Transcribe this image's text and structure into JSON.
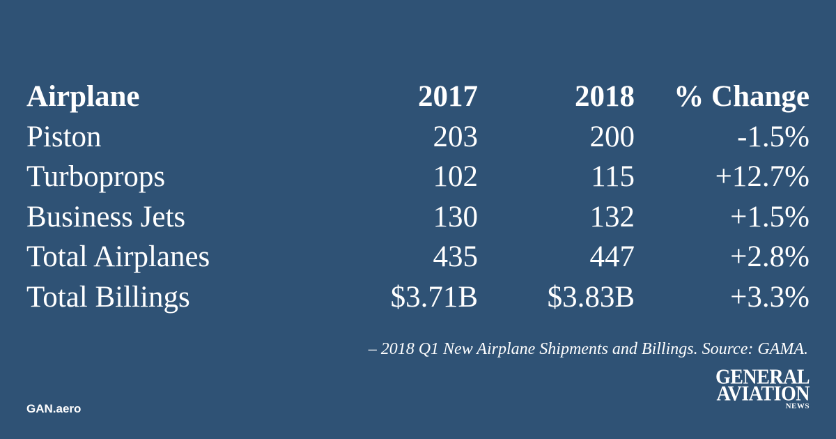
{
  "table": {
    "headers": {
      "airplane": "Airplane",
      "y2017": "2017",
      "y2018": "2018",
      "change": "% Change"
    },
    "rows": [
      {
        "label": "Piston",
        "v2017": "203",
        "v2018": "200",
        "change": "-1.5%"
      },
      {
        "label": "Turboprops",
        "v2017": "102",
        "v2018": "115",
        "change": "+12.7%"
      },
      {
        "label": "Business Jets",
        "v2017": "130",
        "v2018": "132",
        "change": "+1.5%"
      },
      {
        "label": "Total Airplanes",
        "v2017": "435",
        "v2018": "447",
        "change": "+2.8%"
      },
      {
        "label": "Total Billings",
        "v2017": "$3.71B",
        "v2018": "$3.83B",
        "change": "+3.3%"
      }
    ]
  },
  "source_note": "– 2018 Q1 New Airplane Shipments and Billings. Source: GAMA.",
  "site_url": "GAN.aero",
  "logo": {
    "line1": "GENERAL",
    "line2": "AVIATION",
    "line3": "NEWS"
  },
  "colors": {
    "background": "#2f5275",
    "text": "#ffffff"
  }
}
